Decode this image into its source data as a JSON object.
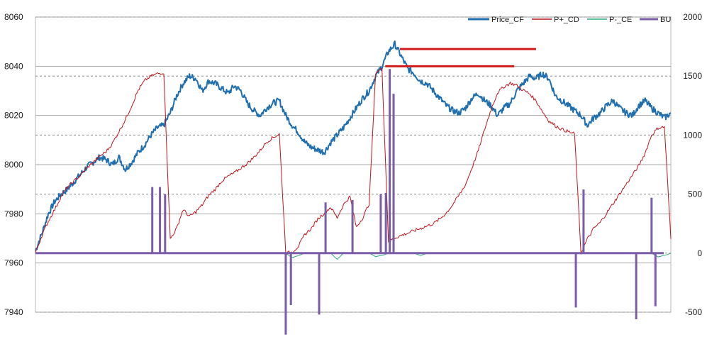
{
  "chart_data": {
    "type": "line",
    "title": "",
    "xlabel": "",
    "ylabel": "",
    "ylim_left": [
      7940,
      8060
    ],
    "ylim_right": [
      -500,
      2000
    ],
    "y_ticks_left": [
      "7940",
      "7960",
      "7980",
      "8000",
      "8020",
      "8040",
      "8060"
    ],
    "y_ticks_right": [
      "-500",
      "0",
      "500",
      "1000",
      "1500",
      "2000"
    ],
    "grid": true,
    "legend_position": "top-right",
    "x_count": 100,
    "series": [
      {
        "name": "Price_CF",
        "color": "#1f6fb0",
        "axis": "left",
        "values": [
          7965,
          7972,
          7980,
          7985,
          7988,
          7990,
          7993,
          7996,
          7999,
          8001,
          8003,
          8002,
          8000,
          8003,
          7998,
          8001,
          8005,
          8008,
          8012,
          8015,
          8016,
          8021,
          8028,
          8033,
          8036,
          8035,
          8030,
          8034,
          8033,
          8031,
          8029,
          8032,
          8030,
          8025,
          8022,
          8020,
          8023,
          8025,
          8026,
          8020,
          8016,
          8013,
          8009,
          8007,
          8006,
          8005,
          8009,
          8012,
          8015,
          8019,
          8023,
          8027,
          8030,
          8036,
          8040,
          8046,
          8049,
          8044,
          8039,
          8037,
          8034,
          8033,
          8030,
          8027,
          8024,
          8022,
          8021,
          8023,
          8027,
          8029,
          8026,
          8024,
          8020,
          8023,
          8025,
          8030,
          8033,
          8036,
          8035,
          8037,
          8035,
          8028,
          8026,
          8024,
          8022,
          8020,
          8016,
          8019,
          8021,
          8024,
          8026,
          8023,
          8021,
          8020,
          8024,
          8026,
          8023,
          8021,
          8019,
          8021
        ]
      },
      {
        "name": "P+_CD",
        "color": "#c0141c",
        "axis": "right",
        "values": [
          0,
          150,
          270,
          370,
          480,
          560,
          610,
          660,
          720,
          770,
          820,
          860,
          930,
          1030,
          1130,
          1250,
          1380,
          1460,
          1500,
          1520,
          1530,
          120,
          210,
          370,
          310,
          350,
          410,
          490,
          540,
          610,
          650,
          680,
          720,
          760,
          810,
          870,
          940,
          980,
          1010,
          0,
          10,
          60,
          160,
          210,
          290,
          340,
          390,
          300,
          410,
          480,
          220,
          300,
          420,
          1530,
          1560,
          100,
          130,
          150,
          170,
          190,
          210,
          230,
          250,
          290,
          340,
          410,
          490,
          580,
          720,
          870,
          1050,
          1220,
          1360,
          1410,
          1440,
          1420,
          1380,
          1350,
          1290,
          1200,
          1120,
          1080,
          1050,
          1030,
          1010,
          0,
          120,
          210,
          260,
          340,
          420,
          500,
          580,
          660,
          740,
          850,
          1000,
          1060,
          1070,
          120
        ]
      },
      {
        "name": "P-_CE",
        "color": "#2ea878",
        "axis": "right",
        "values": [
          0,
          0,
          0,
          0,
          0,
          0,
          0,
          0,
          0,
          0,
          0,
          0,
          0,
          0,
          0,
          0,
          0,
          0,
          0,
          0,
          0,
          0,
          0,
          0,
          0,
          0,
          0,
          0,
          0,
          0,
          0,
          0,
          0,
          0,
          0,
          0,
          0,
          0,
          0,
          0,
          -40,
          -20,
          0,
          0,
          0,
          0,
          0,
          -50,
          0,
          0,
          0,
          0,
          0,
          -30,
          -20,
          0,
          0,
          0,
          0,
          0,
          -20,
          0,
          0,
          0,
          0,
          0,
          0,
          0,
          0,
          0,
          0,
          0,
          0,
          0,
          0,
          0,
          0,
          0,
          0,
          0,
          0,
          0,
          0,
          0,
          0,
          0,
          0,
          0,
          0,
          0,
          0,
          0,
          0,
          0,
          0,
          0,
          0,
          -30,
          -20,
          0
        ]
      },
      {
        "name": "BU",
        "color": "#7a5ca8",
        "axis": "right",
        "type": "spikes",
        "values": [
          0,
          0,
          0,
          0,
          0,
          0,
          0,
          0,
          0,
          0,
          0,
          0,
          0,
          0,
          0,
          0,
          0,
          0,
          0,
          0,
          0,
          0,
          0,
          0,
          0,
          0,
          0,
          0,
          0,
          0,
          0,
          0,
          0,
          0,
          0,
          0,
          0,
          0,
          0,
          0,
          0,
          0,
          0,
          0,
          0,
          0,
          0,
          0,
          0,
          0,
          0,
          0,
          0,
          0,
          0,
          0,
          0,
          0,
          0,
          0,
          0,
          0,
          0,
          0,
          0,
          0,
          0,
          0,
          0,
          0,
          0,
          0,
          0,
          0,
          0,
          0,
          0,
          0,
          0,
          0,
          0,
          0,
          0,
          0,
          0,
          0,
          0,
          0,
          0,
          0,
          0,
          0,
          0,
          0,
          0,
          0,
          0,
          0,
          0,
          0
        ]
      }
    ],
    "spikes": [
      {
        "x": 18.2,
        "value": 560
      },
      {
        "x": 19.4,
        "value": 560
      },
      {
        "x": 20.2,
        "value": 500
      },
      {
        "x": 39.0,
        "value": -690
      },
      {
        "x": 39.8,
        "value": -440
      },
      {
        "x": 44.2,
        "value": -520
      },
      {
        "x": 45.2,
        "value": 430
      },
      {
        "x": 49.4,
        "value": 450
      },
      {
        "x": 53.8,
        "value": 500
      },
      {
        "x": 54.6,
        "value": 510
      },
      {
        "x": 55.2,
        "value": 1560
      },
      {
        "x": 55.8,
        "value": 1350
      },
      {
        "x": 84.2,
        "value": -460
      },
      {
        "x": 85.4,
        "value": 540
      },
      {
        "x": 93.6,
        "value": -560
      },
      {
        "x": 96.0,
        "value": 470
      },
      {
        "x": 96.6,
        "value": -450
      }
    ],
    "resistance_lines": [
      {
        "y": 8047,
        "x_start": 56.8,
        "x_end": 78.0,
        "color": "#d01c1c"
      },
      {
        "y": 8040,
        "x_start": 54.5,
        "x_end": 74.6,
        "color": "#d01c1c"
      }
    ]
  }
}
